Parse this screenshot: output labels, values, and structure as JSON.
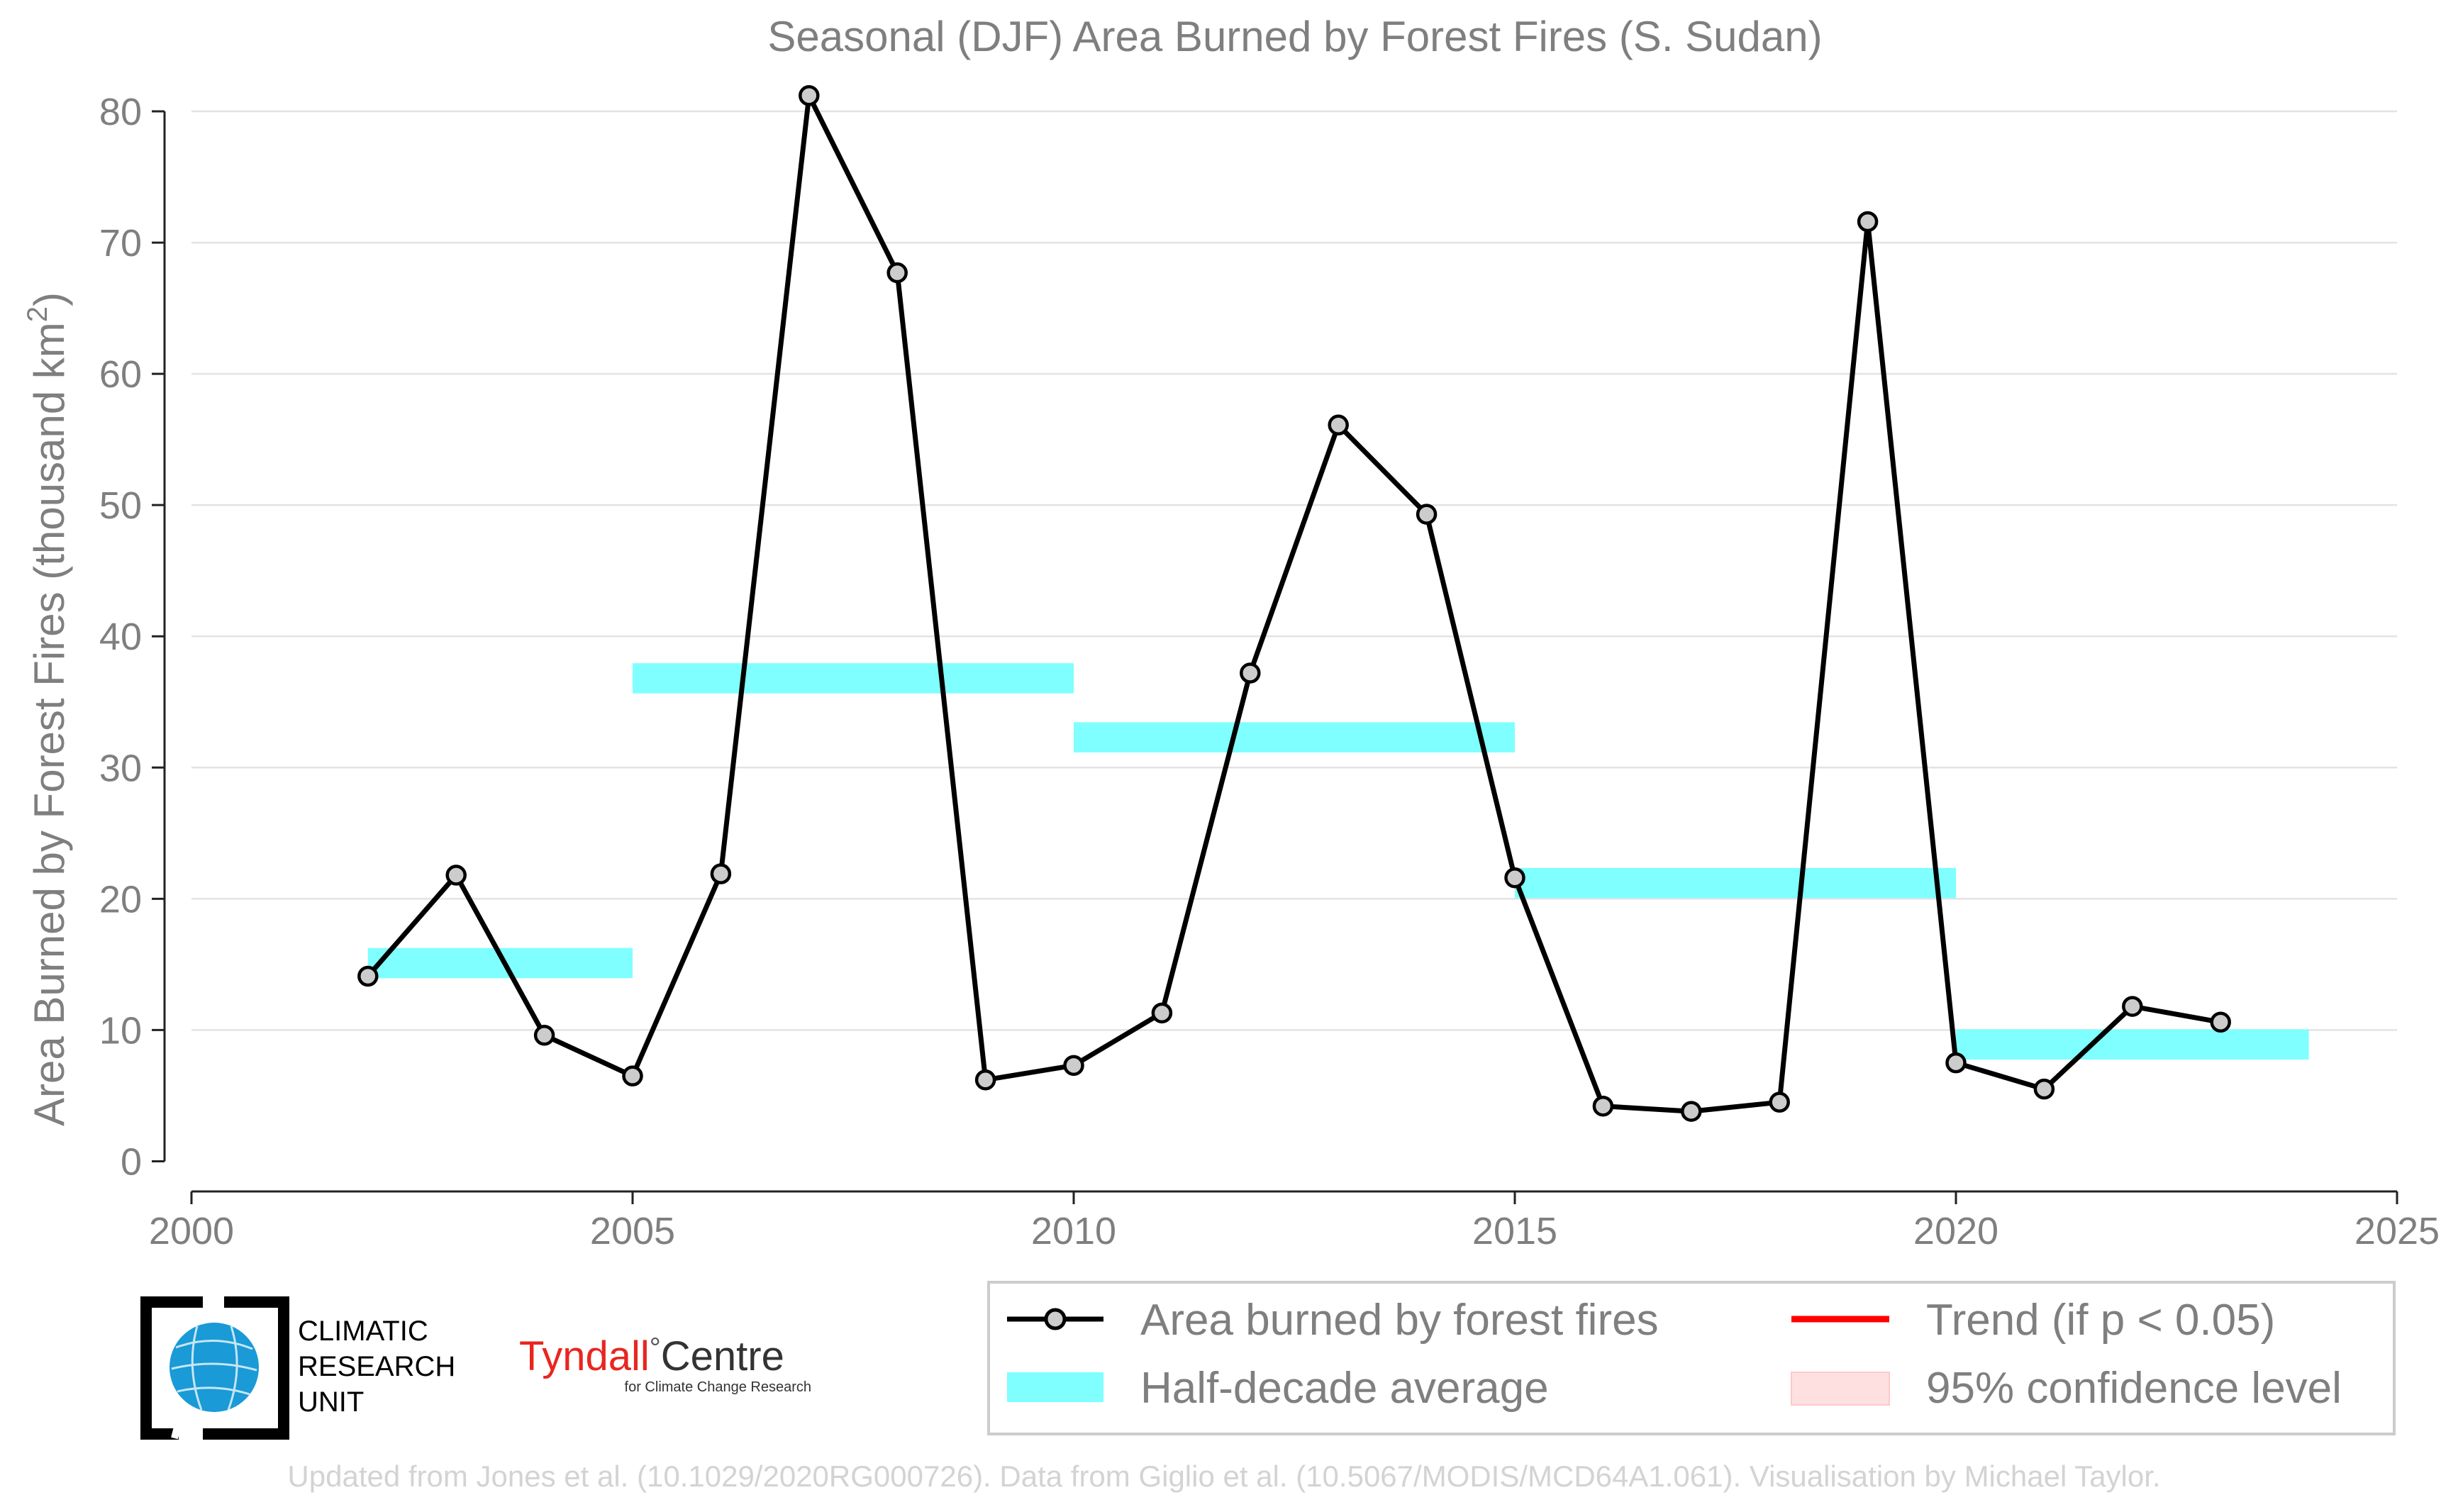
{
  "chart_data": {
    "type": "line",
    "title": "Seasonal (DJF) Area Burned by Forest Fires (S. Sudan)",
    "ylabel": "Area Burned by Forest Fires (thousand km²)",
    "ylabel_main": "Area Burned by Forest Fires (thousand km",
    "ylabel_sup": "2",
    "ylabel_close": ")",
    "xlabel": "",
    "xlim": [
      2000,
      2025
    ],
    "ylim": [
      -2.3,
      82
    ],
    "x_ticks": [
      2000,
      2005,
      2010,
      2015,
      2020,
      2025
    ],
    "y_ticks": [
      0,
      10,
      20,
      30,
      40,
      50,
      60,
      70,
      80
    ],
    "grid": "horizontal",
    "series": [
      {
        "name": "Area burned by forest fires",
        "color": "#000000",
        "marker_fill": "#cccccc",
        "x": [
          2002,
          2003,
          2004,
          2005,
          2006,
          2007,
          2008,
          2009,
          2010,
          2011,
          2012,
          2013,
          2014,
          2015,
          2016,
          2017,
          2018,
          2019,
          2020,
          2021,
          2022,
          2023
        ],
        "y": [
          14.1,
          21.8,
          9.6,
          6.5,
          21.9,
          81.2,
          67.7,
          6.2,
          7.3,
          11.3,
          37.2,
          56.1,
          49.3,
          21.6,
          4.2,
          3.8,
          4.5,
          71.6,
          7.5,
          5.5,
          11.8,
          10.6
        ]
      }
    ],
    "half_decade_average": {
      "name": "Half-decade average",
      "color": "#7fffff",
      "segments": [
        {
          "x_start": 2002,
          "x_end": 2005,
          "value": 15.1
        },
        {
          "x_start": 2005,
          "x_end": 2010,
          "value": 36.8
        },
        {
          "x_start": 2010,
          "x_end": 2015,
          "value": 32.3
        },
        {
          "x_start": 2015,
          "x_end": 2020,
          "value": 21.2
        },
        {
          "x_start": 2020,
          "x_end": 2024,
          "value": 8.9
        }
      ]
    },
    "legend": {
      "placement": "bottom-right",
      "entries": [
        {
          "label": "Area burned by forest fires",
          "kind": "line-marker",
          "color": "#000000"
        },
        {
          "label": "Trend (if p < 0.05)",
          "kind": "line",
          "color": "#ff0000"
        },
        {
          "label": "Half-decade average",
          "kind": "patch",
          "color": "#7fffff"
        },
        {
          "label": "95% confidence level",
          "kind": "patch",
          "color": "#ffe0e0"
        }
      ]
    }
  },
  "logos": {
    "cru_lines": [
      "CLIMATIC",
      "RESEARCH",
      "UNIT"
    ],
    "tyndall_main": "Tyndall",
    "tyndall_degree": "°",
    "tyndall_centre": "Centre",
    "tyndall_sub": "for Climate Change Research"
  },
  "footer": "Updated from Jones et al. (10.1029/2020RG000726). Data from Giglio et al. (10.5067/MODIS/MCD64A1.061). Visualisation by Michael Taylor."
}
